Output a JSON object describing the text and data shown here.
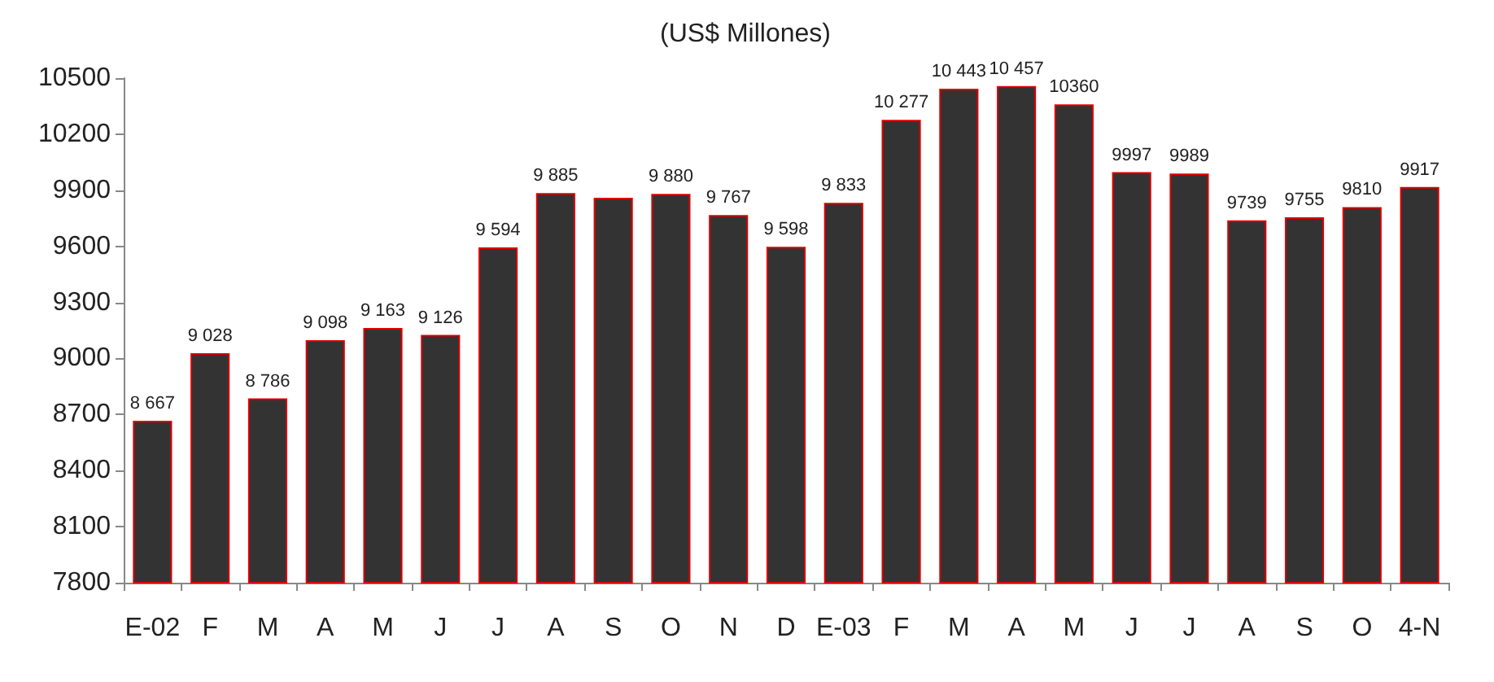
{
  "chart_data": {
    "type": "bar",
    "title": "(US$ Millones)",
    "categories": [
      "E-02",
      "F",
      "M",
      "A",
      "M",
      "J",
      "J",
      "A",
      "S",
      "O",
      "N",
      "D",
      "E-03",
      "F",
      "M",
      "A",
      "M",
      "J",
      "J",
      "A",
      "S",
      "O",
      "4-N"
    ],
    "series": [
      {
        "color": "#333333",
        "values": [
          8667,
          9028,
          8786,
          9098,
          9163,
          9126,
          9594,
          9885,
          9860,
          9880,
          9767,
          9598,
          9833,
          10277,
          10443,
          10457,
          10360,
          9997,
          9989,
          9739,
          9755,
          9810,
          9917
        ],
        "value_labels": [
          "8 667",
          "9 028",
          "8 786",
          "9 098",
          "9 163",
          "9 126",
          "9 594",
          "9 885",
          null,
          "9 880",
          "9 767",
          "9 598",
          "9 833",
          "10 277",
          "10 443",
          "10 457",
          "10360",
          "9997",
          "9989",
          "9739",
          "9755",
          "9810",
          "9917"
        ]
      }
    ],
    "ylim": [
      7800,
      10500
    ],
    "yticks": [
      7800,
      8100,
      8400,
      8700,
      9000,
      9300,
      9600,
      9900,
      10200,
      10500
    ],
    "grid": false
  }
}
